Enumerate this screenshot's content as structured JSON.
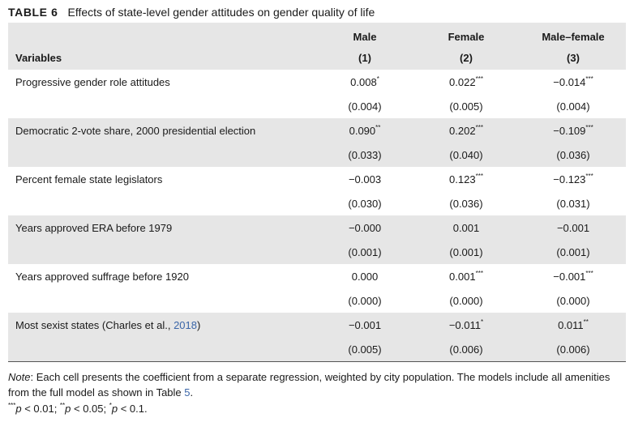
{
  "caption": {
    "number": "TABLE 6",
    "title": "Effects of state-level gender attitudes on gender quality of life"
  },
  "columns": [
    {
      "name": "Male",
      "num": "(1)"
    },
    {
      "name": "Female",
      "num": "(2)"
    },
    {
      "name": "Male–female",
      "num": "(3)"
    }
  ],
  "variables_label": "Variables",
  "rows": [
    {
      "label": "Progressive gender role attitudes",
      "coef": [
        {
          "v": "0.008",
          "s": "*"
        },
        {
          "v": "0.022",
          "s": "***"
        },
        {
          "v": "−0.014",
          "s": "***"
        }
      ],
      "se": [
        "(0.004)",
        "(0.005)",
        "(0.004)"
      ]
    },
    {
      "label": "Democratic 2-vote share, 2000 presidential election",
      "coef": [
        {
          "v": "0.090",
          "s": "**"
        },
        {
          "v": "0.202",
          "s": "***"
        },
        {
          "v": "−0.109",
          "s": "***"
        }
      ],
      "se": [
        "(0.033)",
        "(0.040)",
        "(0.036)"
      ]
    },
    {
      "label": "Percent female state legislators",
      "coef": [
        {
          "v": "−0.003",
          "s": ""
        },
        {
          "v": "0.123",
          "s": "***"
        },
        {
          "v": "−0.123",
          "s": "***"
        }
      ],
      "se": [
        "(0.030)",
        "(0.036)",
        "(0.031)"
      ]
    },
    {
      "label": "Years approved ERA before 1979",
      "coef": [
        {
          "v": "−0.000",
          "s": ""
        },
        {
          "v": "0.001",
          "s": ""
        },
        {
          "v": "−0.001",
          "s": ""
        }
      ],
      "se": [
        "(0.001)",
        "(0.001)",
        "(0.001)"
      ]
    },
    {
      "label": "Years approved suffrage before 1920",
      "coef": [
        {
          "v": "0.000",
          "s": ""
        },
        {
          "v": "0.001",
          "s": "***"
        },
        {
          "v": "−0.001",
          "s": "***"
        }
      ],
      "se": [
        "(0.000)",
        "(0.000)",
        "(0.000)"
      ]
    },
    {
      "label": "Most sexist states (Charles et al., ",
      "label_cite": "2018",
      "label_end": ")",
      "coef": [
        {
          "v": "−0.001",
          "s": ""
        },
        {
          "v": "−0.011",
          "s": "*"
        },
        {
          "v": "0.011",
          "s": "**"
        }
      ],
      "se": [
        "(0.005)",
        "(0.006)",
        "(0.006)"
      ]
    }
  ],
  "note": {
    "label": "Note",
    "text": ": Each cell presents the coefficient from a separate regression, weighted by city population. The models include all amenities from the full model as shown in Table ",
    "table_ref": "5",
    "end": "."
  },
  "significance": [
    {
      "stars": "***",
      "p": "p",
      "rest": " < 0.01; "
    },
    {
      "stars": "**",
      "p": "p",
      "rest": " < 0.05; "
    },
    {
      "stars": "*",
      "p": "p",
      "rest": " < 0.1."
    }
  ]
}
